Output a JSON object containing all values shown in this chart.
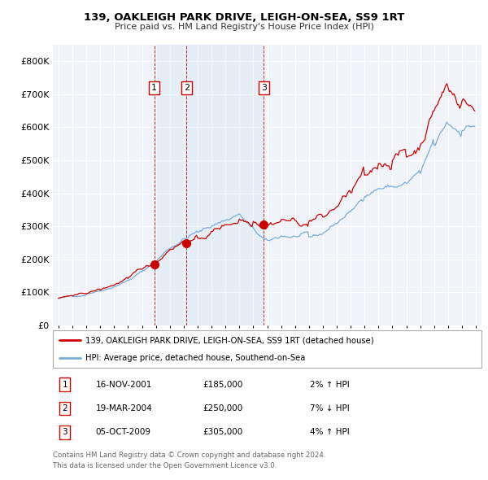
{
  "title": "139, OAKLEIGH PARK DRIVE, LEIGH-ON-SEA, SS9 1RT",
  "subtitle": "Price paid vs. HM Land Registry's House Price Index (HPI)",
  "ylim": [
    0,
    850000
  ],
  "yticks": [
    0,
    100000,
    200000,
    300000,
    400000,
    500000,
    600000,
    700000,
    800000
  ],
  "ytick_labels": [
    "£0",
    "£100K",
    "£200K",
    "£300K",
    "£400K",
    "£500K",
    "£600K",
    "£700K",
    "£800K"
  ],
  "sale_color": "#cc0000",
  "hpi_color": "#7aaddd",
  "sale_dates_dec": [
    2001.877,
    2004.214,
    2009.756
  ],
  "sale_prices": [
    185000,
    250000,
    305000
  ],
  "sale_labels": [
    "1",
    "2",
    "3"
  ],
  "annotation_rows": [
    [
      "1",
      "16-NOV-2001",
      "£185,000",
      "2% ↑ HPI"
    ],
    [
      "2",
      "19-MAR-2004",
      "£250,000",
      "7% ↓ HPI"
    ],
    [
      "3",
      "05-OCT-2009",
      "£305,000",
      "4% ↑ HPI"
    ]
  ],
  "legend_line1": "139, OAKLEIGH PARK DRIVE, LEIGH-ON-SEA, SS9 1RT (detached house)",
  "legend_line2": "HPI: Average price, detached house, Southend-on-Sea",
  "footer1": "Contains HM Land Registry data © Crown copyright and database right 2024.",
  "footer2": "This data is licensed under the Open Government Licence v3.0.",
  "shade_color": "#ddeeff",
  "background_color": "#ffffff",
  "plot_bg_color": "#f0f4f8",
  "grid_color": "#ffffff"
}
